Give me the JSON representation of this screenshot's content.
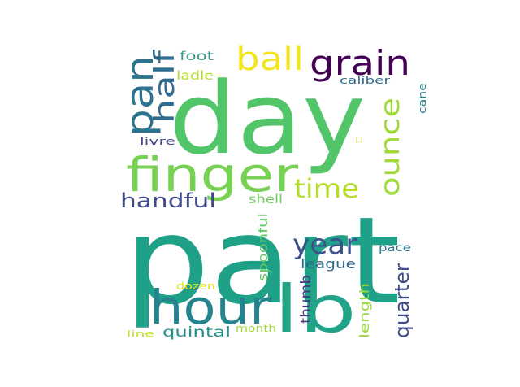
{
  "words": [
    {
      "text": "day",
      "color": "#52c569"
    },
    {
      "text": "part",
      "color": "#1fa187"
    },
    {
      "text": "finger",
      "color": "#77d153"
    },
    {
      "text": "hour",
      "color": "#25838e"
    },
    {
      "text": "lb",
      "color": "#20a386"
    },
    {
      "text": "grain",
      "color": "#440154"
    },
    {
      "text": "ball",
      "color": "#f4e61e"
    },
    {
      "text": "pan",
      "color": "#2c738e"
    },
    {
      "text": "half",
      "color": "#2f6b8e"
    },
    {
      "text": "ounce",
      "color": "#a0da39"
    },
    {
      "text": "time",
      "color": "#b5de2b"
    },
    {
      "text": "handful",
      "color": "#3e4989"
    },
    {
      "text": "year",
      "color": "#3b528b"
    },
    {
      "text": "quarter",
      "color": "#3e4a89"
    },
    {
      "text": "quintal",
      "color": "#21918c"
    },
    {
      "text": "spoonful",
      "color": "#5ec962"
    },
    {
      "text": "thumb",
      "color": "#443983"
    },
    {
      "text": "length",
      "color": "#9bd93c"
    },
    {
      "text": "league",
      "color": "#31688e"
    },
    {
      "text": "shell",
      "color": "#6ccd5a"
    },
    {
      "text": "foot",
      "color": "#3a9a8a"
    },
    {
      "text": "ladle",
      "color": "#b2dd2c"
    },
    {
      "text": "caliber",
      "color": "#306a8e"
    },
    {
      "text": "cane",
      "color": "#26828e"
    },
    {
      "text": "livre",
      "color": "#414487"
    },
    {
      "text": "pace",
      "color": "#2a788e"
    },
    {
      "text": "dozen",
      "color": "#dde318"
    },
    {
      "text": "month",
      "color": "#a8db34"
    },
    {
      "text": "line",
      "color": "#c2df23"
    },
    {
      "text": "□",
      "color": "#d8e219"
    }
  ]
}
